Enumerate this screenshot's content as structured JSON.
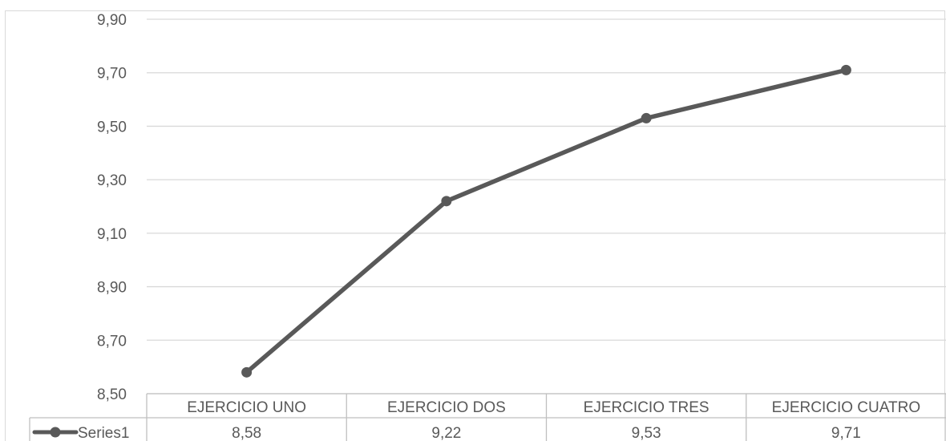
{
  "chart_data": {
    "type": "line",
    "title": "",
    "xlabel": "",
    "ylabel": "",
    "categories": [
      "EJERCICIO UNO",
      "EJERCICIO DOS",
      "EJERCICIO TRES",
      "EJERCICIO CUATRO"
    ],
    "series": [
      {
        "name": "Series1",
        "values": [
          8.58,
          9.22,
          9.53,
          9.71
        ],
        "labels": [
          "8,58",
          "9,22",
          "9,53",
          "9,71"
        ],
        "color": "#595959"
      }
    ],
    "ylim": [
      8.5,
      9.9
    ],
    "yticks": [
      8.5,
      8.7,
      8.9,
      9.1,
      9.3,
      9.5,
      9.7,
      9.9
    ],
    "ytick_labels": [
      "8,50",
      "8,70",
      "8,90",
      "9,10",
      "9,30",
      "9,50",
      "9,70",
      "9,90"
    ],
    "grid": true,
    "data_table": true,
    "legend_placement": "data-table-row-header"
  },
  "colors": {
    "line": "#595959",
    "gridline": "#d9d9d9",
    "text": "#595959",
    "border": "#bfbfbf"
  }
}
